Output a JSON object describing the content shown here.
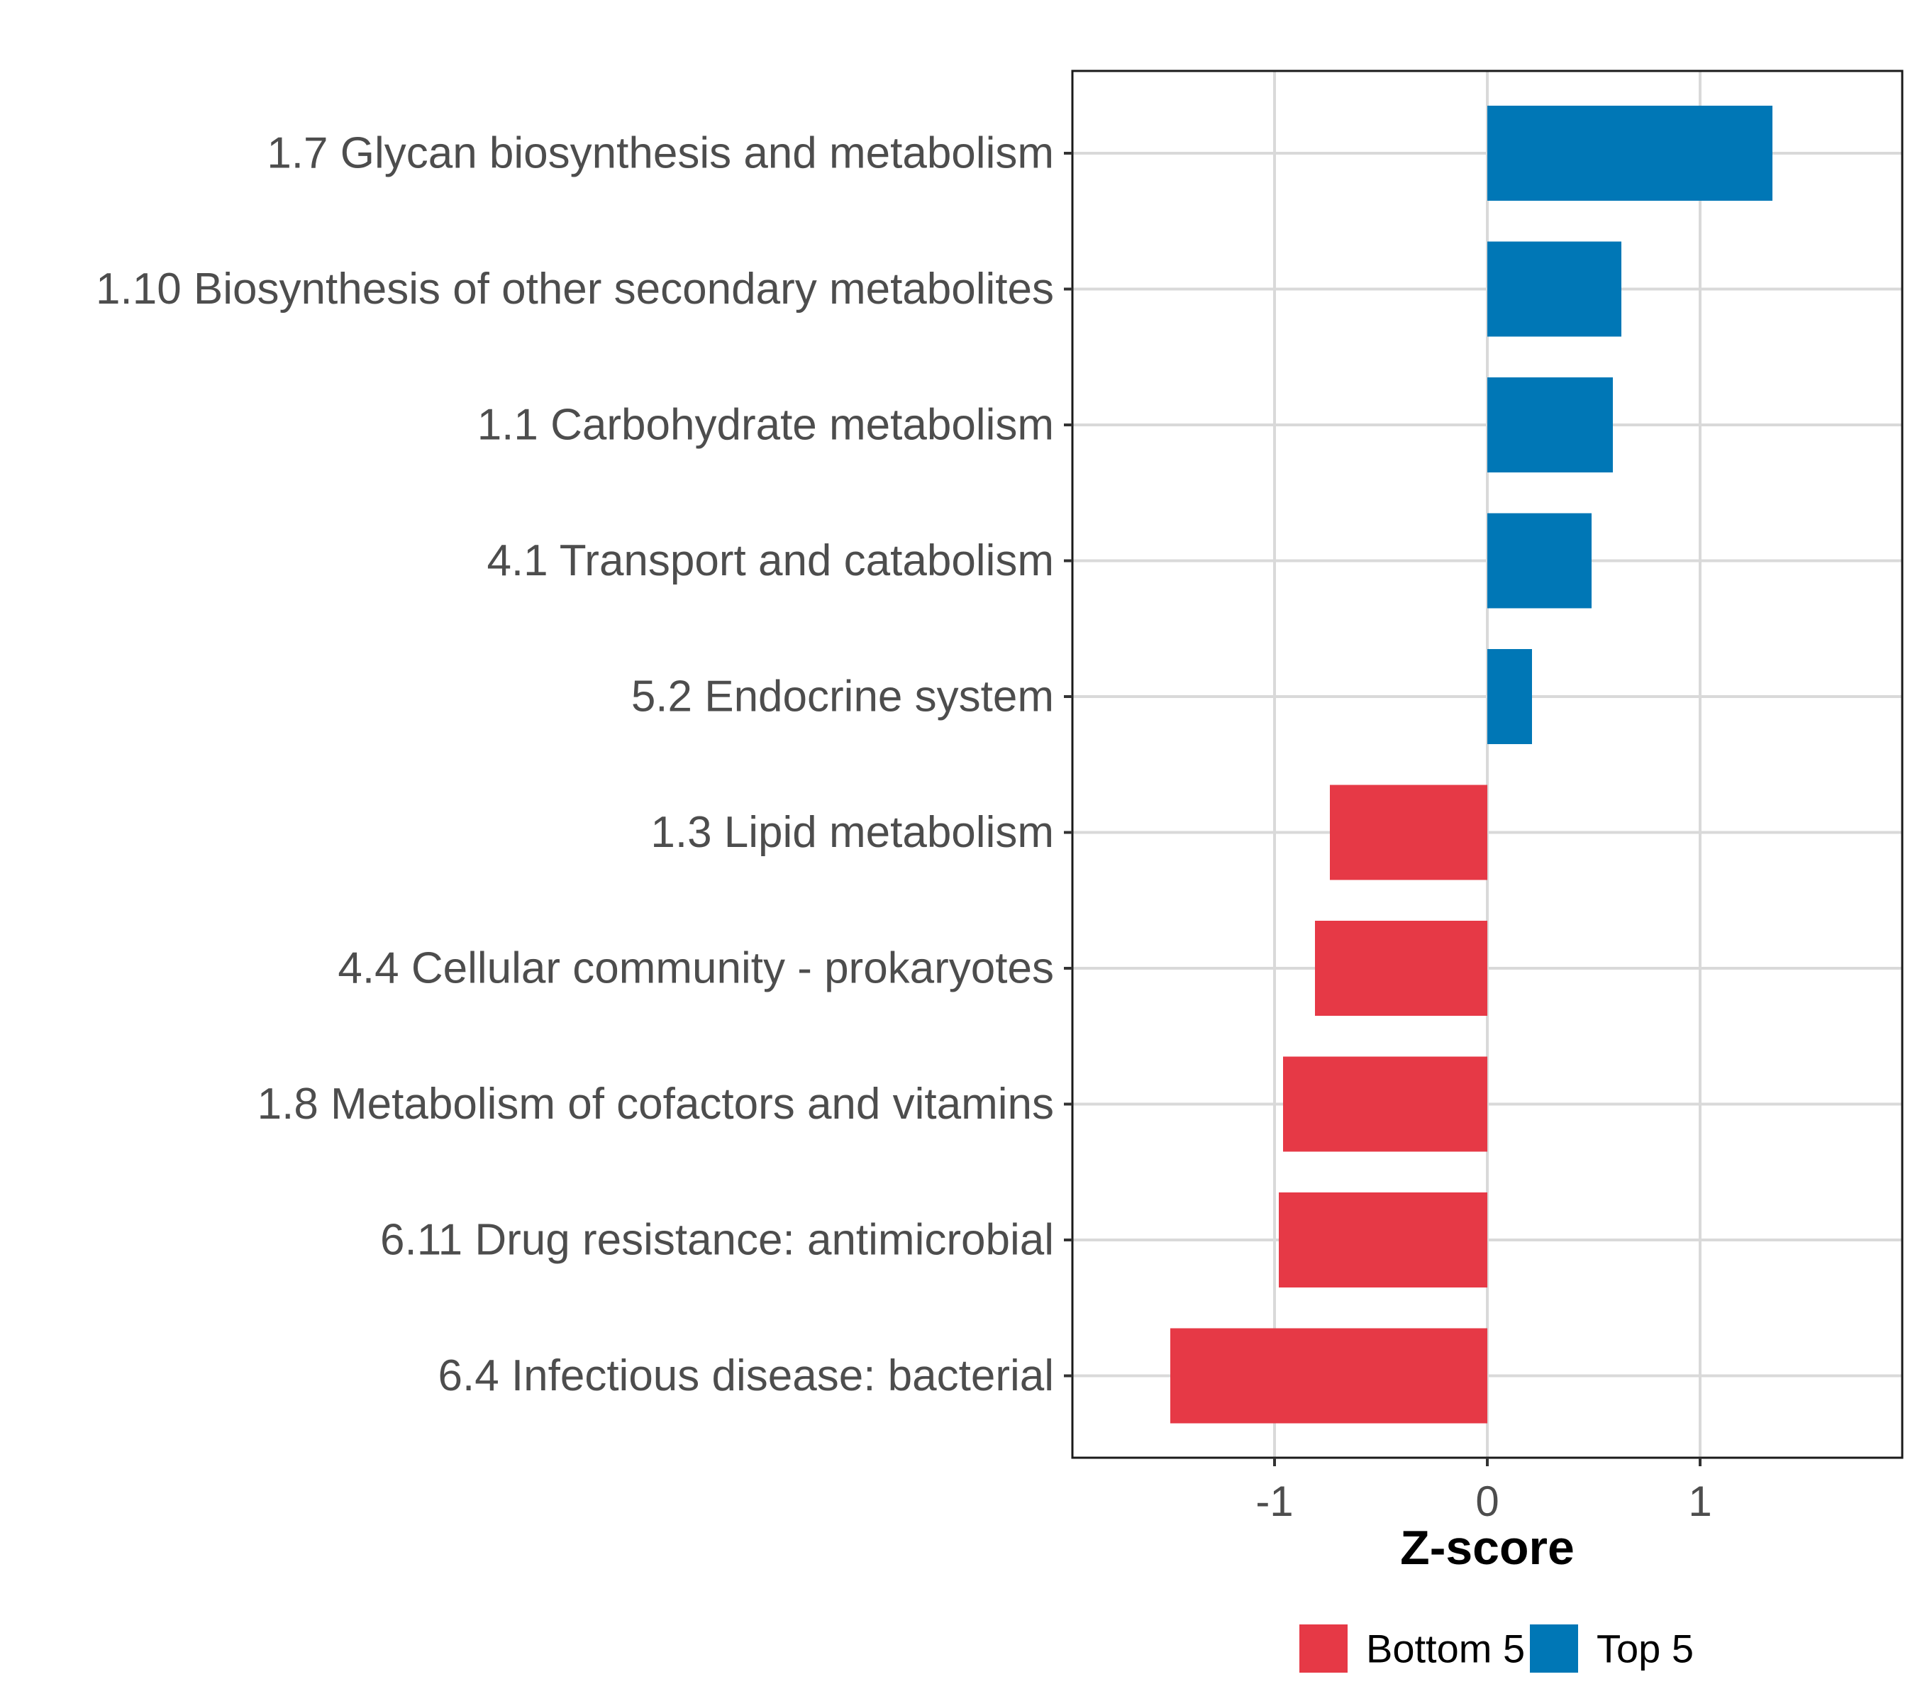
{
  "chart_data": {
    "type": "bar",
    "orientation": "horizontal",
    "title": "",
    "xlabel": "Z-score",
    "ylabel": "",
    "xlim": [
      -1.95,
      1.95
    ],
    "xticks": [
      -1,
      0,
      1
    ],
    "xtick_labels": [
      "-1",
      "0",
      "1"
    ],
    "grid": true,
    "legend_position": "bottom",
    "categories": [
      "1.7 Glycan biosynthesis and metabolism",
      "1.10 Biosynthesis of other secondary metabolites",
      "1.1 Carbohydrate metabolism",
      "4.1 Transport and catabolism",
      "5.2 Endocrine system",
      "1.3 Lipid metabolism",
      "4.4 Cellular community - prokaryotes",
      "1.8 Metabolism of cofactors and vitamins",
      "6.11 Drug resistance: antimicrobial",
      "6.4 Infectious disease: bacterial"
    ],
    "values": [
      1.34,
      0.63,
      0.59,
      0.49,
      0.21,
      -0.74,
      -0.81,
      -0.96,
      -0.98,
      -1.49
    ],
    "groups": [
      "Top 5",
      "Top 5",
      "Top 5",
      "Top 5",
      "Top 5",
      "Bottom 5",
      "Bottom 5",
      "Bottom 5",
      "Bottom 5",
      "Bottom 5"
    ],
    "legend": [
      {
        "name": "Bottom 5",
        "color": "#E63946"
      },
      {
        "name": "Top 5",
        "color": "#0077B6"
      }
    ]
  }
}
